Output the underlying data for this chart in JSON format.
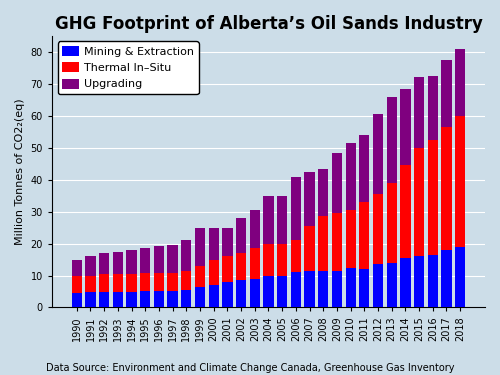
{
  "title": "GHG Footprint of Alberta’s Oil Sands Industry",
  "subtitle": "Data Source: Environment and Climate Change Canada, Greenhouse Gas Inventory",
  "ylabel": "Million Tonnes of CO2₂(eq)",
  "years": [
    1990,
    1991,
    1992,
    1993,
    1994,
    1995,
    1996,
    1997,
    1998,
    1999,
    2000,
    2001,
    2002,
    2003,
    2004,
    2005,
    2006,
    2007,
    2008,
    2009,
    2010,
    2011,
    2012,
    2013,
    2014,
    2015,
    2016,
    2017,
    2018
  ],
  "mining": [
    4.5,
    5.0,
    5.0,
    5.0,
    5.0,
    5.2,
    5.2,
    5.2,
    5.5,
    6.5,
    7.0,
    8.0,
    8.5,
    9.0,
    10.0,
    10.0,
    11.0,
    11.5,
    11.5,
    11.5,
    12.5,
    12.0,
    13.5,
    14.0,
    15.5,
    16.0,
    16.5,
    18.0,
    19.0
  ],
  "thermal": [
    5.5,
    5.0,
    5.5,
    5.5,
    5.5,
    5.5,
    5.5,
    5.5,
    6.0,
    6.5,
    8.0,
    8.0,
    8.5,
    9.5,
    10.0,
    10.0,
    10.0,
    14.0,
    17.0,
    18.0,
    18.0,
    21.0,
    22.0,
    25.0,
    29.0,
    34.0,
    36.0,
    38.5,
    41.0
  ],
  "upgrading": [
    5.0,
    6.0,
    6.5,
    7.0,
    7.5,
    8.0,
    8.5,
    9.0,
    9.5,
    12.0,
    10.0,
    9.0,
    11.0,
    12.0,
    15.0,
    15.0,
    20.0,
    17.0,
    15.0,
    19.0,
    21.0,
    21.0,
    25.0,
    27.0,
    24.0,
    22.0,
    20.0,
    21.0,
    21.0
  ],
  "color_mining": "#0000ff",
  "color_thermal": "#ff0000",
  "color_upgrading": "#7f007f",
  "background_color": "#ccdde8",
  "ylim": [
    0,
    85
  ],
  "yticks": [
    0,
    10,
    20,
    30,
    40,
    50,
    60,
    70,
    80
  ],
  "legend_labels": [
    "Mining & Extraction",
    "Thermal In–Situ",
    "Upgrading"
  ],
  "title_fontsize": 12,
  "axis_fontsize": 8,
  "tick_fontsize": 7,
  "subtitle_fontsize": 7
}
